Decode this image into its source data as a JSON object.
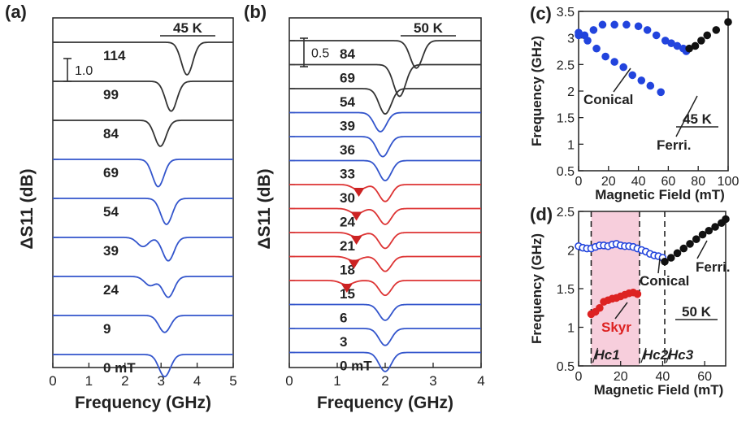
{
  "chart_data": [
    {
      "panel": "(a)",
      "type": "line",
      "temperature": "45 K",
      "xlabel": "Frequency (GHz)",
      "ylabel": "ΔS11 (dB)",
      "xlim": [
        0,
        5
      ],
      "xticks": [
        "0",
        "1",
        "2",
        "3",
        "4",
        "5"
      ],
      "scale_bar": "1.0",
      "series": [
        {
          "name": "114",
          "color": "#333333",
          "dips": [
            {
              "x": 3.72,
              "depth": 1.25
            }
          ]
        },
        {
          "name": "99",
          "color": "#333333",
          "dips": [
            {
              "x": 3.28,
              "depth": 1.15
            }
          ]
        },
        {
          "name": "84",
          "color": "#333333",
          "dips": [
            {
              "x": 2.98,
              "depth": 1.0
            }
          ]
        },
        {
          "name": "69",
          "color": "#3355cc",
          "dips": [
            {
              "x": 2.92,
              "depth": 1.05
            }
          ]
        },
        {
          "name": "54",
          "color": "#3355cc",
          "dips": [
            {
              "x": 3.15,
              "depth": 1.0
            }
          ]
        },
        {
          "name": "39",
          "color": "#3355cc",
          "dips": [
            {
              "x": 2.5,
              "depth": 0.35
            },
            {
              "x": 3.2,
              "depth": 0.9
            }
          ]
        },
        {
          "name": "24",
          "color": "#3355cc",
          "dips": [
            {
              "x": 2.7,
              "depth": 0.35
            },
            {
              "x": 3.2,
              "depth": 0.8
            }
          ]
        },
        {
          "name": "9",
          "color": "#3355cc",
          "dips": [
            {
              "x": 3.1,
              "depth": 0.65
            }
          ]
        },
        {
          "name": "0 mT",
          "color": "#3355cc",
          "dips": [
            {
              "x": 3.1,
              "depth": 0.85
            }
          ]
        }
      ]
    },
    {
      "panel": "(b)",
      "type": "line",
      "temperature": "50 K",
      "xlabel": "Frequency (GHz)",
      "ylabel": "ΔS11 (dB)",
      "xlim": [
        0,
        4
      ],
      "xticks": [
        "0",
        "1",
        "2",
        "3",
        "4"
      ],
      "scale_bar": "0.5",
      "series": [
        {
          "name": "84",
          "color": "#333333",
          "dips": [
            {
              "x": 2.65,
              "depth": 1.3
            }
          ]
        },
        {
          "name": "69",
          "color": "#333333",
          "dips": [
            {
              "x": 2.3,
              "depth": 1.5
            }
          ]
        },
        {
          "name": "54",
          "color": "#333333",
          "dips": [
            {
              "x": 2.0,
              "depth": 1.2
            }
          ]
        },
        {
          "name": "39",
          "color": "#3355cc",
          "dips": [
            {
              "x": 1.9,
              "depth": 0.9
            }
          ]
        },
        {
          "name": "36",
          "color": "#3355cc",
          "dips": [
            {
              "x": 1.95,
              "depth": 0.95
            }
          ]
        },
        {
          "name": "33",
          "color": "#3355cc",
          "dips": [
            {
              "x": 2.0,
              "depth": 0.95
            }
          ]
        },
        {
          "name": "30",
          "color": "#dd3333",
          "dips": [
            {
              "x": 1.45,
              "depth": 0.25
            },
            {
              "x": 2.0,
              "depth": 0.8
            }
          ],
          "marker_x": 1.45
        },
        {
          "name": "24",
          "color": "#dd3333",
          "dips": [
            {
              "x": 1.4,
              "depth": 0.25
            },
            {
              "x": 2.0,
              "depth": 0.75
            }
          ],
          "marker_x": 1.4
        },
        {
          "name": "21",
          "color": "#dd3333",
          "dips": [
            {
              "x": 1.4,
              "depth": 0.2
            },
            {
              "x": 2.0,
              "depth": 0.75
            }
          ],
          "marker_x": 1.4
        },
        {
          "name": "18",
          "color": "#dd3333",
          "dips": [
            {
              "x": 1.35,
              "depth": 0.2
            },
            {
              "x": 2.0,
              "depth": 0.7
            }
          ],
          "marker_x": 1.35
        },
        {
          "name": "15",
          "color": "#dd3333",
          "dips": [
            {
              "x": 1.2,
              "depth": 0.2
            },
            {
              "x": 2.0,
              "depth": 0.7
            }
          ],
          "marker_x": 1.2
        },
        {
          "name": "6",
          "color": "#3355cc",
          "dips": [
            {
              "x": 2.0,
              "depth": 0.75
            }
          ]
        },
        {
          "name": "3",
          "color": "#3355cc",
          "dips": [
            {
              "x": 2.0,
              "depth": 0.8
            }
          ]
        },
        {
          "name": "0 mT",
          "color": "#3355cc",
          "dips": [
            {
              "x": 2.0,
              "depth": 0.9
            }
          ]
        }
      ]
    },
    {
      "panel": "(c)",
      "type": "scatter",
      "temperature": "45 K",
      "xlabel": "Magnetic Field (mT)",
      "ylabel": "Frequency (GHz)",
      "xlim": [
        0,
        100
      ],
      "ylim": [
        0.5,
        3.5
      ],
      "xticks": [
        "0",
        "20",
        "40",
        "60",
        "80",
        "100"
      ],
      "yticks": [
        "0.5",
        "1",
        "1.5",
        "2",
        "2.5",
        "3",
        "3.5"
      ],
      "annotations": [
        "Conical",
        "Ferri."
      ],
      "series": [
        {
          "color": "#2244dd",
          "points": [
            [
              0,
              3.05
            ],
            [
              4,
              3.05
            ],
            [
              10,
              3.15
            ],
            [
              16,
              3.25
            ],
            [
              24,
              3.25
            ],
            [
              32,
              3.25
            ],
            [
              40,
              3.22
            ],
            [
              46,
              3.15
            ],
            [
              52,
              3.05
            ],
            [
              58,
              2.95
            ],
            [
              62,
              2.9
            ],
            [
              66,
              2.85
            ],
            [
              70,
              2.8
            ],
            [
              72,
              2.75
            ]
          ]
        },
        {
          "color": "#2244dd",
          "points": [
            [
              0,
              3.1
            ],
            [
              6,
              2.95
            ],
            [
              12,
              2.8
            ],
            [
              18,
              2.65
            ],
            [
              24,
              2.55
            ],
            [
              30,
              2.45
            ],
            [
              36,
              2.3
            ],
            [
              42,
              2.2
            ],
            [
              48,
              2.1
            ],
            [
              55,
              1.98
            ]
          ]
        },
        {
          "color": "#111111",
          "points": [
            [
              74,
              2.8
            ],
            [
              78,
              2.85
            ],
            [
              82,
              2.95
            ],
            [
              86,
              3.05
            ],
            [
              92,
              3.15
            ],
            [
              100,
              3.3
            ]
          ]
        }
      ]
    },
    {
      "panel": "(d)",
      "type": "scatter",
      "temperature": "50 K",
      "xlabel": "Magnetic Field (mT)",
      "ylabel": "Frequency (GHz)",
      "xlim": [
        0,
        70
      ],
      "ylim": [
        0.5,
        2.5
      ],
      "xticks": [
        "0",
        "20",
        "40",
        "60"
      ],
      "yticks": [
        "0.5",
        "1",
        "1.5",
        "2",
        "2.5"
      ],
      "annotations": [
        "Skyr",
        "Conical",
        "Ferri."
      ],
      "skyrmion_region": [
        6,
        29
      ],
      "critical_fields": [
        {
          "label": "Hc1",
          "x": 6
        },
        {
          "label": "Hc2",
          "x": 29
        },
        {
          "label": "Hc3",
          "x": 41
        }
      ],
      "series": [
        {
          "name": "Conical",
          "color": "#2244dd",
          "points": [
            [
              0,
              2.05
            ],
            [
              2,
              2.03
            ],
            [
              4,
              2.02
            ],
            [
              6,
              2.02
            ],
            [
              8,
              2.04
            ],
            [
              10,
              2.06
            ],
            [
              12,
              2.06
            ],
            [
              14,
              2.05
            ],
            [
              16,
              2.07
            ],
            [
              18,
              2.08
            ],
            [
              20,
              2.06
            ],
            [
              22,
              2.05
            ],
            [
              24,
              2.05
            ],
            [
              26,
              2.04
            ],
            [
              28,
              2.02
            ],
            [
              30,
              2.0
            ],
            [
              32,
              1.98
            ],
            [
              34,
              1.95
            ],
            [
              36,
              1.93
            ],
            [
              38,
              1.92
            ],
            [
              40,
              1.9
            ]
          ]
        },
        {
          "name": "Skyr",
          "color": "#dd2222",
          "points": [
            [
              6,
              1.17
            ],
            [
              8,
              1.2
            ],
            [
              10,
              1.25
            ],
            [
              12,
              1.33
            ],
            [
              14,
              1.35
            ],
            [
              16,
              1.37
            ],
            [
              18,
              1.38
            ],
            [
              20,
              1.4
            ],
            [
              22,
              1.42
            ],
            [
              24,
              1.44
            ],
            [
              26,
              1.45
            ],
            [
              28,
              1.43
            ]
          ]
        },
        {
          "name": "Ferri.",
          "color": "#111111",
          "points": [
            [
              41,
              1.85
            ],
            [
              44,
              1.9
            ],
            [
              47,
              1.96
            ],
            [
              50,
              2.02
            ],
            [
              53,
              2.08
            ],
            [
              56,
              2.14
            ],
            [
              59,
              2.2
            ],
            [
              62,
              2.25
            ],
            [
              65,
              2.3
            ],
            [
              68,
              2.35
            ],
            [
              70,
              2.4
            ]
          ]
        }
      ]
    }
  ]
}
